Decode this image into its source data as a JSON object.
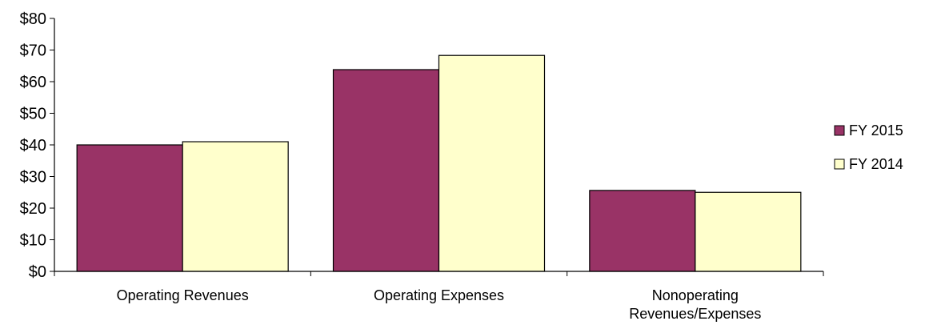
{
  "chart_data": {
    "type": "bar",
    "categories": [
      [
        "Operating Revenues"
      ],
      [
        "Operating Expenses"
      ],
      [
        "Nonoperating",
        "Revenues/Expenses"
      ]
    ],
    "series": [
      {
        "name": "FY 2015",
        "values": [
          40,
          63.8,
          25.6
        ],
        "color": "#993366"
      },
      {
        "name": "FY 2014",
        "values": [
          41,
          68.3,
          25
        ],
        "color": "#FFFFCC"
      }
    ],
    "ylim": [
      0,
      80
    ],
    "yticks": [
      0,
      10,
      20,
      30,
      40,
      50,
      60,
      70,
      80
    ],
    "ytick_labels": [
      "$0",
      "$10",
      "$20",
      "$30",
      "$40",
      "$50",
      "$60",
      "$70",
      "$80"
    ],
    "title": "",
    "xlabel": "",
    "ylabel": "",
    "legend_position": "right",
    "grid": false
  }
}
